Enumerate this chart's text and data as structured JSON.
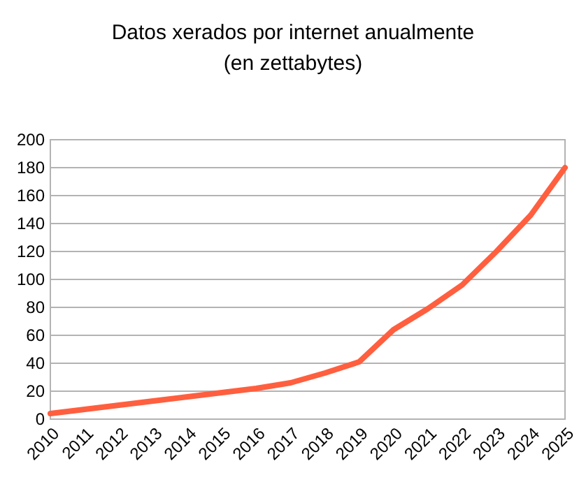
{
  "chart_data": {
    "type": "line",
    "title": "Datos xerados por internet anualmente",
    "subtitle": "(en zettabytes)",
    "categories": [
      "2010",
      "2011",
      "2012",
      "2013",
      "2014",
      "2015",
      "2016",
      "2017",
      "2018",
      "2019",
      "2020",
      "2021",
      "2022",
      "2023",
      "2024",
      "2025"
    ],
    "series": [
      {
        "color": "#ff5f3f",
        "values": [
          4,
          7,
          10,
          13,
          16,
          19,
          22,
          26,
          33,
          41,
          64,
          79,
          96,
          120,
          146,
          180
        ]
      }
    ],
    "ylim": [
      0,
      200
    ],
    "yticks": [
      0,
      20,
      40,
      60,
      80,
      100,
      120,
      140,
      160,
      180,
      200
    ],
    "grid": "y",
    "marker": "none",
    "line_style": "solid"
  }
}
